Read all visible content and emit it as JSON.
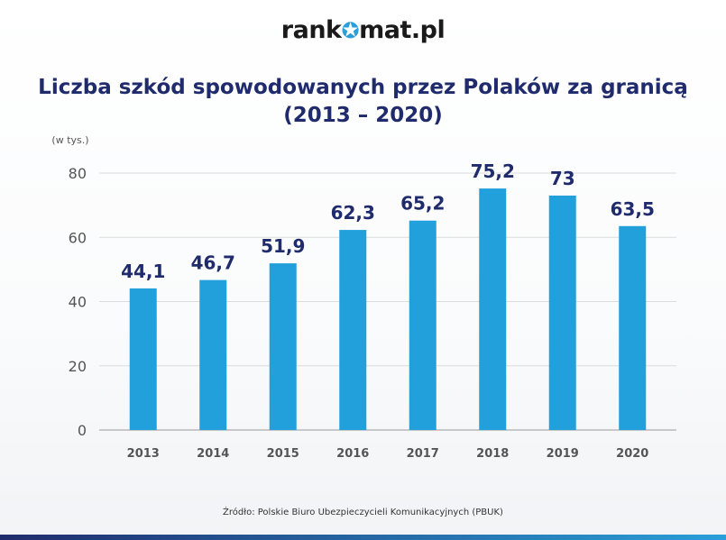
{
  "logo": {
    "part1": "rank",
    "star": "✪",
    "part2": "mat.pl"
  },
  "chart_data": {
    "type": "bar",
    "title_line1": "Liczba szkód spowodowanych przez Polaków za granicą",
    "title_line2": "(2013 – 2020)",
    "unit_label": "(w tys.)",
    "categories": [
      "2013",
      "2014",
      "2015",
      "2016",
      "2017",
      "2018",
      "2019",
      "2020"
    ],
    "values": [
      44.1,
      46.7,
      51.9,
      62.3,
      65.2,
      75.2,
      73,
      63.5
    ],
    "value_labels": [
      "44,1",
      "46,7",
      "51,9",
      "62,3",
      "65,2",
      "75,2",
      "73",
      "63,5"
    ],
    "y_ticks": [
      0,
      20,
      40,
      60,
      80
    ],
    "ylim": [
      0,
      80
    ],
    "grid": true,
    "bar_color": "#22a0dc",
    "label_color": "#1f2b6c"
  },
  "source": "Źródło: Polskie Biuro Ubezpieczycieli Komunikacyjnych (PBUK)"
}
